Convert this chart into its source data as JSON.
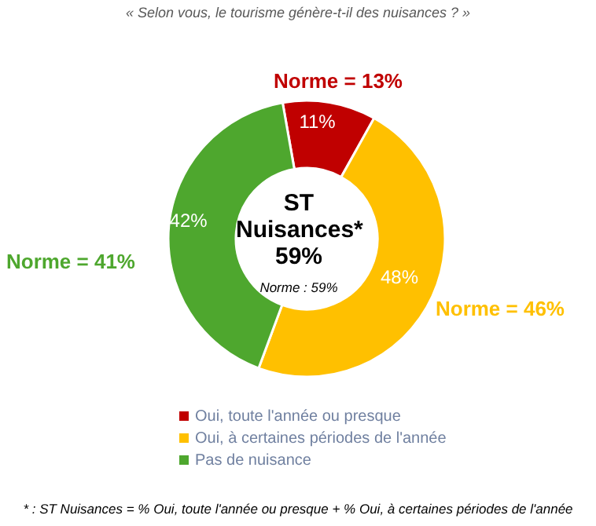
{
  "chart_data": {
    "type": "donut",
    "title": "« Selon vous, le tourisme génère-t-il des nuisances ? »",
    "categories": [
      "Oui, toute l'année ou presque",
      "Oui, à certaines périodes de l'année",
      "Pas de nuisance"
    ],
    "values": [
      11,
      48,
      42
    ],
    "value_labels": [
      "11%",
      "48%",
      "42%"
    ],
    "colors": [
      "#c00000",
      "#ffc000",
      "#4ea72e"
    ],
    "legend": "bottom",
    "annotations": [
      "Norme = 13%",
      "Norme = 46%",
      "Norme = 41%",
      "ST Nuisances* 59%",
      "Norme : 59%",
      "* : ST Nuisances = % Oui, toute l'année ou presque + % Oui, à certaines périodes de l'année"
    ]
  }
}
